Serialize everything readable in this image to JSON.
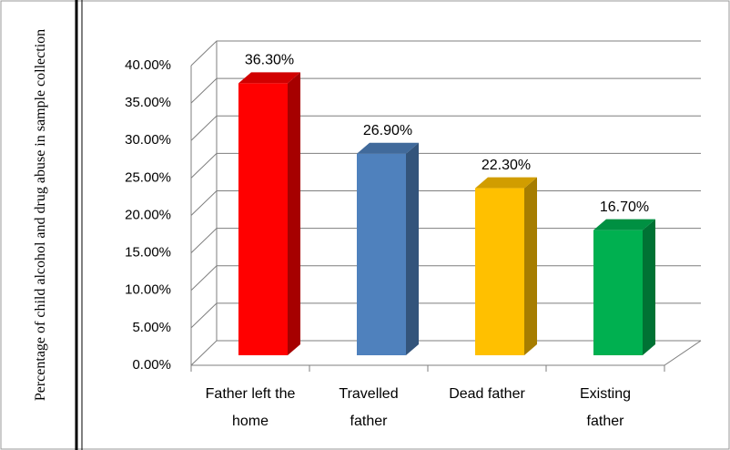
{
  "chart_data": {
    "type": "bar3d",
    "y_axis_label": "Percentage of child alcohol and drug abuse in sample collection",
    "categories": [
      "Father left the home",
      "Travelled father",
      "Dead father",
      "Existing father"
    ],
    "values": [
      36.3,
      26.9,
      22.3,
      16.7
    ],
    "value_labels": [
      "36.30%",
      "26.90%",
      "22.30%",
      "16.70%"
    ],
    "colors": [
      "#ff0000",
      "#4f81bd",
      "#ffc000",
      "#00b050"
    ],
    "ylim": [
      0,
      40
    ],
    "yticks": [
      {
        "value": 0,
        "label": "0.00%"
      },
      {
        "value": 5,
        "label": "5.00%"
      },
      {
        "value": 10,
        "label": "10.00%"
      },
      {
        "value": 15,
        "label": "15.00%"
      },
      {
        "value": 20,
        "label": "20.00%"
      },
      {
        "value": 25,
        "label": "25.00%"
      },
      {
        "value": 30,
        "label": "30.00%"
      },
      {
        "value": 35,
        "label": "35.00%"
      },
      {
        "value": 40,
        "label": "40.00%"
      }
    ],
    "grid": true
  }
}
